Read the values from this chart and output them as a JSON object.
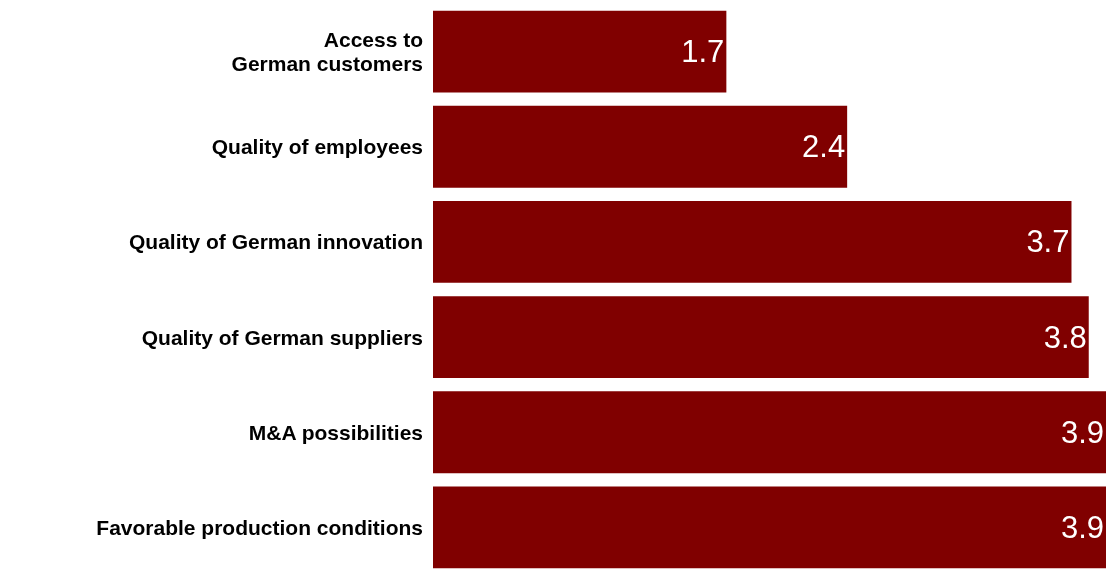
{
  "chart_data": {
    "type": "bar",
    "orientation": "horizontal",
    "categories": [
      "Access to\nGerman customers",
      "Quality of employees",
      "Quality of German innovation",
      "Quality of German suppliers",
      "M&A possibilities",
      "Favorable production conditions"
    ],
    "values": [
      1.7,
      2.4,
      3.7,
      3.8,
      3.9,
      3.9
    ],
    "color": "#800000",
    "data_labels": true
  }
}
